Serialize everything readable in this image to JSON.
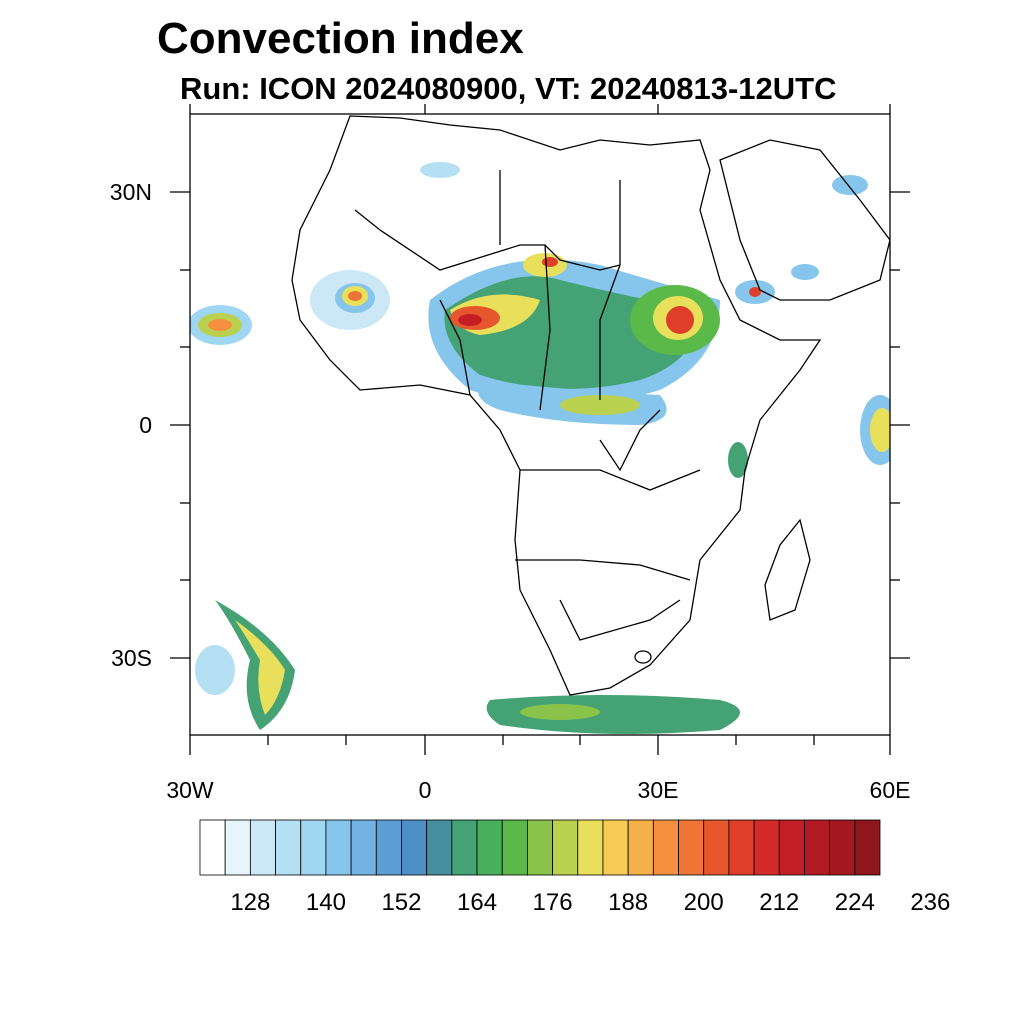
{
  "title": "Convection index",
  "subtitle": "Run: ICON 2024080900,  VT: 20240813-12UTC",
  "map": {
    "lat_labels": [
      "30N",
      "0",
      "30S"
    ],
    "lon_labels": [
      "30W",
      "0",
      "30E",
      "60E"
    ],
    "lon_range": [
      -30,
      60
    ],
    "lat_range": [
      -40,
      40
    ]
  },
  "colorbar": {
    "labels": [
      "128",
      "140",
      "152",
      "164",
      "176",
      "188",
      "200",
      "212",
      "224",
      "236"
    ],
    "colors": [
      "#ffffff",
      "#e6f4fb",
      "#cce8f6",
      "#b5e0f4",
      "#9fd6f2",
      "#86c5ec",
      "#72b3e3",
      "#5d9fd5",
      "#4f8fc7",
      "#468f9e",
      "#45a274",
      "#46b05a",
      "#5bb94a",
      "#8ac34a",
      "#bad04f",
      "#e8e05a",
      "#f6cc55",
      "#f6b048",
      "#f49040",
      "#ef7436",
      "#e6572e",
      "#df3f2a",
      "#d42a2a",
      "#c41f27",
      "#b41a24",
      "#a51820",
      "#8f171b"
    ]
  },
  "colors": {
    "background": "#ffffff",
    "coastline": "#000000"
  }
}
